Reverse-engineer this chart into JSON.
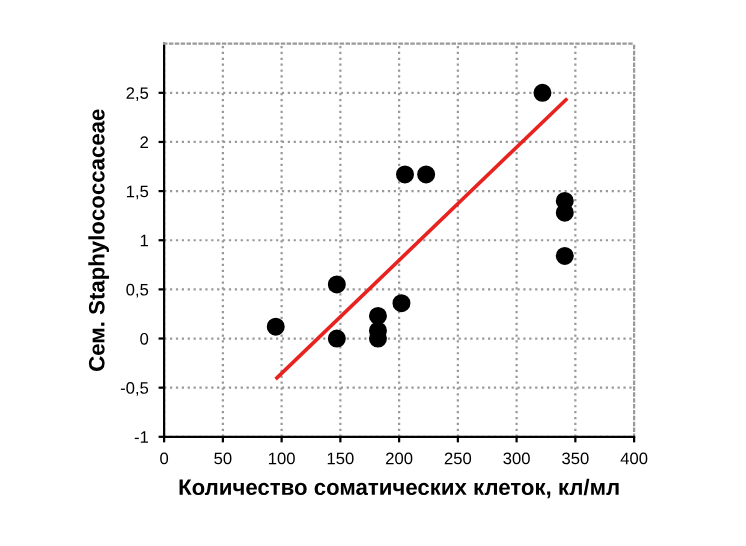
{
  "chart_data": {
    "type": "scatter",
    "xlabel": "Количество соматических клеток, кл/мл",
    "ylabel": "Сем. Staphylococcaceae",
    "series": [
      {
        "color": "#000000",
        "marker": "circle",
        "x": [
          95,
          147,
          147,
          182,
          182,
          182,
          202,
          205,
          223,
          322,
          341,
          341,
          341
        ],
        "values": [
          0.12,
          0.55,
          0.0,
          0.23,
          0.08,
          0.0,
          0.36,
          1.67,
          1.67,
          2.5,
          1.4,
          1.28,
          0.84
        ]
      },
      {
        "type": "line",
        "color": "#e8231f",
        "marker": "none",
        "line_style": "solid",
        "x": [
          96,
          342
        ],
        "values": [
          -0.4,
          2.43
        ]
      }
    ],
    "xlim": [
      0,
      400
    ],
    "ylim": [
      -1,
      3
    ],
    "xticks": [
      0,
      50,
      100,
      150,
      200,
      250,
      300,
      350,
      400
    ],
    "yticks": [
      -1,
      {
        "value": -0.5,
        "label": "-0,5"
      },
      0,
      {
        "value": 0.5,
        "label": "0,5"
      },
      1,
      {
        "value": 1.5,
        "label": "1,5"
      },
      2,
      {
        "value": 2.5,
        "label": "2,5"
      }
    ],
    "grid": true
  }
}
